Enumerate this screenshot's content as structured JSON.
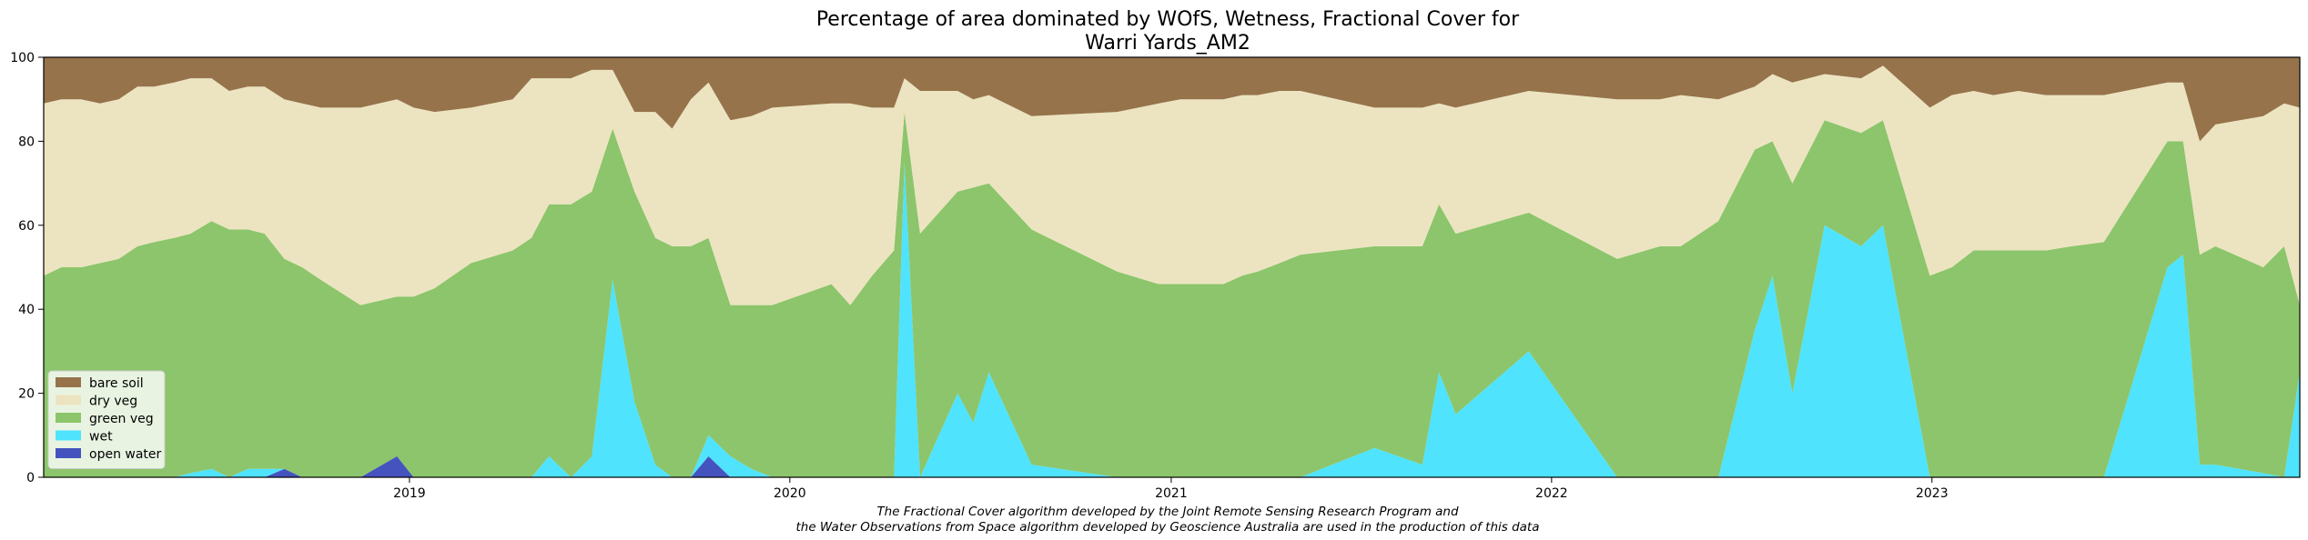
{
  "chart_data": {
    "type": "area",
    "stacked": true,
    "title_line1": "Percentage of area dominated by WOfS, Wetness, Fractional Cover for",
    "title_line2": "Warri Yards_AM2",
    "xlabel": "",
    "ylabel": "",
    "xlim": [
      "2018-01-15",
      "2023-12-20"
    ],
    "ylim": [
      0,
      100
    ],
    "x_ticks": [
      "2019-01-01",
      "2020-01-01",
      "2021-01-01",
      "2022-01-01",
      "2023-01-01"
    ],
    "x_tick_labels": [
      "2019",
      "2020",
      "2021",
      "2022",
      "2023"
    ],
    "y_ticks": [
      0,
      20,
      40,
      60,
      80,
      100
    ],
    "y_tick_labels": [
      "0",
      "20",
      "40",
      "60",
      "80",
      "100"
    ],
    "legend_position": "lower-left",
    "grid": false,
    "colors": {
      "open_water": "#4553bf",
      "wet": "#4fe3fd",
      "green_veg": "#8cc56b",
      "dry_veg": "#ece4c0",
      "bare_soil": "#96734b"
    },
    "series_names": {
      "bare_soil": "bare soil",
      "dry_veg": "dry veg",
      "green_veg": "green veg",
      "wet": "wet",
      "open_water": "open water"
    },
    "x": [
      "2018-01-15",
      "2018-02-01",
      "2018-02-20",
      "2018-03-10",
      "2018-03-28",
      "2018-04-15",
      "2018-05-01",
      "2018-05-20",
      "2018-06-05",
      "2018-06-25",
      "2018-07-12",
      "2018-07-30",
      "2018-08-15",
      "2018-09-03",
      "2018-09-20",
      "2018-10-08",
      "2018-11-15",
      "2018-12-20",
      "2019-01-05",
      "2019-01-25",
      "2019-03-01",
      "2019-04-10",
      "2019-04-28",
      "2019-05-15",
      "2019-06-05",
      "2019-06-25",
      "2019-07-15",
      "2019-08-05",
      "2019-08-25",
      "2019-09-10",
      "2019-09-28",
      "2019-10-15",
      "2019-11-05",
      "2019-11-25",
      "2019-12-15",
      "2020-02-10",
      "2020-02-28",
      "2020-03-20",
      "2020-04-10",
      "2020-04-20",
      "2020-05-05",
      "2020-06-10",
      "2020-06-25",
      "2020-07-10",
      "2020-08-20",
      "2020-11-10",
      "2020-12-20",
      "2021-01-10",
      "2021-02-20",
      "2021-03-10",
      "2021-03-25",
      "2021-04-15",
      "2021-05-05",
      "2021-07-15",
      "2021-08-30",
      "2021-09-15",
      "2021-10-01",
      "2021-12-10",
      "2022-03-05",
      "2022-04-15",
      "2022-05-05",
      "2022-06-10",
      "2022-07-15",
      "2022-08-01",
      "2022-08-20",
      "2022-09-20",
      "2022-10-25",
      "2022-11-15",
      "2022-12-30",
      "2023-01-20",
      "2023-02-10",
      "2023-03-01",
      "2023-03-25",
      "2023-04-20",
      "2023-05-15",
      "2023-06-15",
      "2023-08-15",
      "2023-08-30",
      "2023-09-15",
      "2023-09-30",
      "2023-11-15",
      "2023-12-05",
      "2023-12-20"
    ],
    "open_water": [
      0,
      0,
      0,
      0,
      0,
      0,
      0,
      0,
      0,
      0,
      0,
      0,
      0,
      2,
      0,
      0,
      0,
      5,
      0,
      0,
      0,
      0,
      0,
      0,
      0,
      0,
      0,
      0,
      0,
      0,
      0,
      5,
      0,
      0,
      0,
      0,
      0,
      0,
      0,
      0,
      0,
      0,
      0,
      0,
      0,
      0,
      0,
      0,
      0,
      0,
      0,
      0,
      0,
      0,
      0,
      0,
      0,
      0,
      0,
      0,
      0,
      0,
      0,
      0,
      0,
      0,
      0,
      0,
      0,
      0,
      0,
      0,
      0,
      0,
      0,
      0,
      0,
      0,
      0,
      0,
      0,
      0,
      0
    ],
    "wet": [
      0,
      0,
      0,
      0,
      0,
      0,
      0,
      0,
      1,
      2,
      0,
      2,
      2,
      0,
      0,
      0,
      0,
      0,
      0,
      0,
      0,
      0,
      0,
      5,
      0,
      5,
      47,
      18,
      3,
      0,
      0,
      5,
      5,
      2,
      0,
      0,
      0,
      0,
      0,
      75,
      0,
      20,
      13,
      25,
      3,
      0,
      0,
      0,
      0,
      0,
      0,
      0,
      0,
      7,
      3,
      25,
      15,
      30,
      0,
      0,
      0,
      0,
      35,
      48,
      20,
      60,
      55,
      60,
      0,
      0,
      0,
      0,
      0,
      0,
      0,
      0,
      50,
      53,
      3,
      3,
      1,
      0,
      25
    ],
    "green_veg": [
      48,
      50,
      50,
      51,
      52,
      55,
      56,
      57,
      57,
      59,
      59,
      57,
      56,
      50,
      50,
      47,
      41,
      38,
      43,
      45,
      51,
      54,
      57,
      60,
      65,
      63,
      36,
      50,
      54,
      55,
      55,
      47,
      36,
      39,
      41,
      46,
      41,
      48,
      54,
      12,
      58,
      48,
      56,
      45,
      56,
      49,
      46,
      46,
      46,
      48,
      49,
      51,
      53,
      48,
      52,
      40,
      43,
      33,
      52,
      55,
      55,
      61,
      43,
      32,
      50,
      25,
      27,
      25,
      48,
      50,
      54,
      54,
      54,
      54,
      55,
      56,
      30,
      27,
      50,
      52,
      49,
      55,
      16
    ],
    "dry_veg": [
      41,
      40,
      40,
      38,
      38,
      38,
      37,
      37,
      37,
      34,
      33,
      34,
      35,
      38,
      39,
      41,
      47,
      47,
      45,
      42,
      37,
      36,
      38,
      30,
      30,
      29,
      14,
      19,
      30,
      28,
      35,
      37,
      44,
      45,
      47,
      43,
      48,
      40,
      34,
      8,
      34,
      24,
      21,
      21,
      27,
      38,
      43,
      44,
      44,
      43,
      42,
      41,
      39,
      33,
      33,
      24,
      30,
      29,
      38,
      35,
      36,
      29,
      15,
      16,
      24,
      11,
      13,
      13,
      40,
      41,
      38,
      37,
      38,
      37,
      36,
      35,
      14,
      14,
      27,
      29,
      36,
      34,
      47
    ]
  },
  "legend": {
    "items": [
      {
        "key": "bare_soil",
        "label": "bare soil"
      },
      {
        "key": "dry_veg",
        "label": "dry veg"
      },
      {
        "key": "green_veg",
        "label": "green veg"
      },
      {
        "key": "wet",
        "label": "wet"
      },
      {
        "key": "open_water",
        "label": "open water"
      }
    ]
  },
  "caption": {
    "line1": "The Fractional Cover algorithm developed by the Joint Remote Sensing Research Program and",
    "line2": "the Water Observations from Space algorithm developed by Geoscience Australia are used in the production of this data"
  }
}
